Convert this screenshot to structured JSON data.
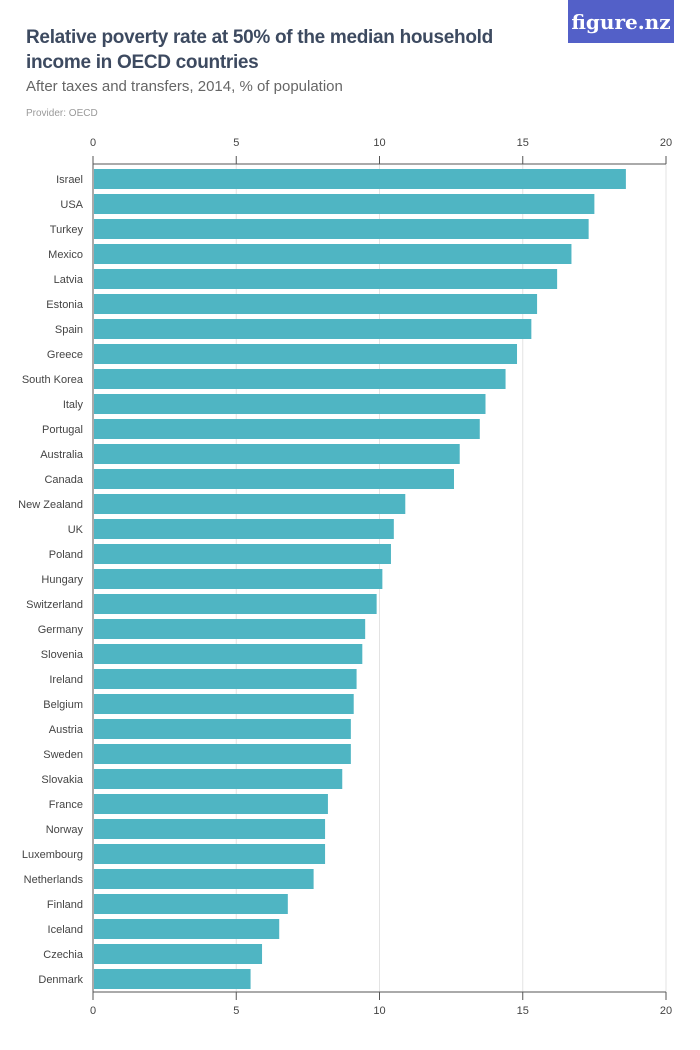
{
  "logo": "figure.nz",
  "chart_data": {
    "type": "bar",
    "orientation": "horizontal",
    "title": "Relative poverty rate at 50% of the median household income in OECD countries",
    "subtitle": "After taxes and transfers, 2014, % of population",
    "provider": "Provider: OECD",
    "xlim": [
      0,
      20
    ],
    "xticks": [
      0,
      5,
      10,
      15,
      20
    ],
    "grid": true,
    "bar_color": "#4fb5c3",
    "categories": [
      "Israel",
      "USA",
      "Turkey",
      "Mexico",
      "Latvia",
      "Estonia",
      "Spain",
      "Greece",
      "South Korea",
      "Italy",
      "Portugal",
      "Australia",
      "Canada",
      "New Zealand",
      "UK",
      "Poland",
      "Hungary",
      "Switzerland",
      "Germany",
      "Slovenia",
      "Ireland",
      "Belgium",
      "Austria",
      "Sweden",
      "Slovakia",
      "France",
      "Norway",
      "Luxembourg",
      "Netherlands",
      "Finland",
      "Iceland",
      "Czechia",
      "Denmark"
    ],
    "values": [
      18.6,
      17.5,
      17.3,
      16.7,
      16.2,
      15.5,
      15.3,
      14.8,
      14.4,
      13.7,
      13.5,
      12.8,
      12.6,
      10.9,
      10.5,
      10.4,
      10.1,
      9.9,
      9.5,
      9.4,
      9.2,
      9.1,
      9.0,
      9.0,
      8.7,
      8.2,
      8.1,
      8.1,
      7.7,
      6.8,
      6.5,
      5.9,
      5.5
    ]
  }
}
